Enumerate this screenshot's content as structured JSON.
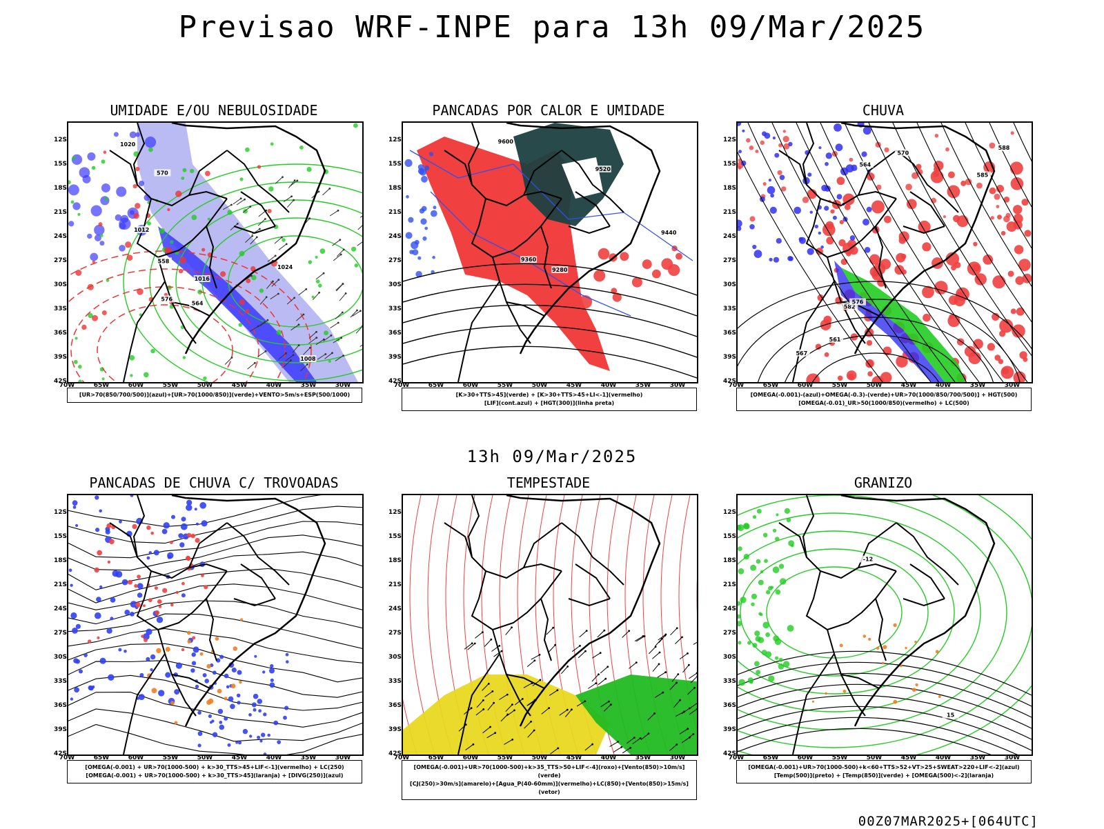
{
  "title": "Previsao WRF-INPE  para 13h 09/Mar/2025",
  "subtitle": "13h 09/Mar/2025",
  "footer": "00Z07MAR2025+[064UTC]",
  "lat_labels": [
    "12S",
    "15S",
    "18S",
    "21S",
    "24S",
    "27S",
    "30S",
    "33S",
    "36S",
    "39S",
    "42S"
  ],
  "lon_labels": [
    "70W",
    "65W",
    "60W",
    "55W",
    "50W",
    "45W",
    "40W",
    "35W",
    "30W"
  ],
  "panels": [
    {
      "title": "UMIDADE E/OU NEBULOSIDADE",
      "legend": [
        "[UR>70(850/700/500)](azul)+[UR>70(1000/850)](verde)+VENTO>5m/s+ESP(500/1000)"
      ],
      "contour_labels": [
        "1016",
        "1012",
        "1020",
        "1024",
        "1008",
        "570",
        "564",
        "558",
        "576"
      ],
      "colors": {
        "blue": "#3a3aff",
        "lightblue": "#aaaaf0",
        "green": "#22cc22",
        "red": "#ee3333"
      }
    },
    {
      "title": "PANCADAS POR CALOR E UMIDADE",
      "legend": [
        "[K>30+TTS>45](verde) + [K>30+TTS>45+LI<-1](vermelho)",
        "[LIF](cont.azul) + [HGT(300)](linha preta)"
      ],
      "contour_labels": [
        "9600",
        "9520",
        "9440",
        "9360",
        "9280"
      ],
      "colors": {
        "red": "#f04040",
        "dark": "#1e4040",
        "blue": "#3050f0"
      }
    },
    {
      "title": "CHUVA",
      "legend": [
        "[OMEGA(-0.001)-(azul)+OMEGA(-0.3)-(verde)+UR>70(1000/850/700/500)] + HGT(500)",
        "[OMEGA(-0.01)_UR>50(1000/850)(vermelho) + LC(500)"
      ],
      "contour_labels": [
        "582",
        "576",
        "570",
        "567",
        "564",
        "561",
        "588",
        "585"
      ],
      "colors": {
        "red": "#f04040",
        "blue": "#3030f0",
        "green": "#22cc22"
      }
    },
    {
      "title": "PANCADAS DE CHUVA C/ TROVOADAS",
      "legend": [
        "[OMEGA(-0.001) + UR>70(1000-500) + k>30_TTS>45+LIF<-1](vermelho) + LC(250)",
        "[OMEGA(-0.001) + UR>70(1000-500) + k>30_TTS>45](laranja) + [DIVG(250)](azul)"
      ],
      "contour_labels": [],
      "colors": {
        "blue": "#3040f0",
        "red": "#f04040",
        "orange": "#f08020"
      }
    },
    {
      "title": "TEMPESTADE",
      "legend": [
        "[OMEGA(-0.001)+UR>70(1000-500)+k>35_TTS>50+LIF<-4](roxo)+[Vento(850)>10m/s](verde)",
        "[CJ(250)>30m/s](amarelo)+[Agua_P(40-60mm)](vermelho)+LC(850)+[Vento(850)>15m/s](vetor)"
      ],
      "contour_labels": [],
      "colors": {
        "yellow": "#e8d820",
        "red": "#f04040",
        "green": "#22bb22"
      }
    },
    {
      "title": "GRANIZO",
      "legend": [
        "[OMEGA(-0.001)+UR>70(1000-500)+k<60+TTS>52+VT>25+SWEAT>220+LIF<-2](azul)",
        "[Temp(500)](preto) + [Temp(850)](verde) + [OMEGA(500)<-2](laranja)"
      ],
      "contour_labels": [
        "-12",
        "15"
      ],
      "colors": {
        "green": "#22cc22",
        "orange": "#f08020"
      }
    }
  ]
}
